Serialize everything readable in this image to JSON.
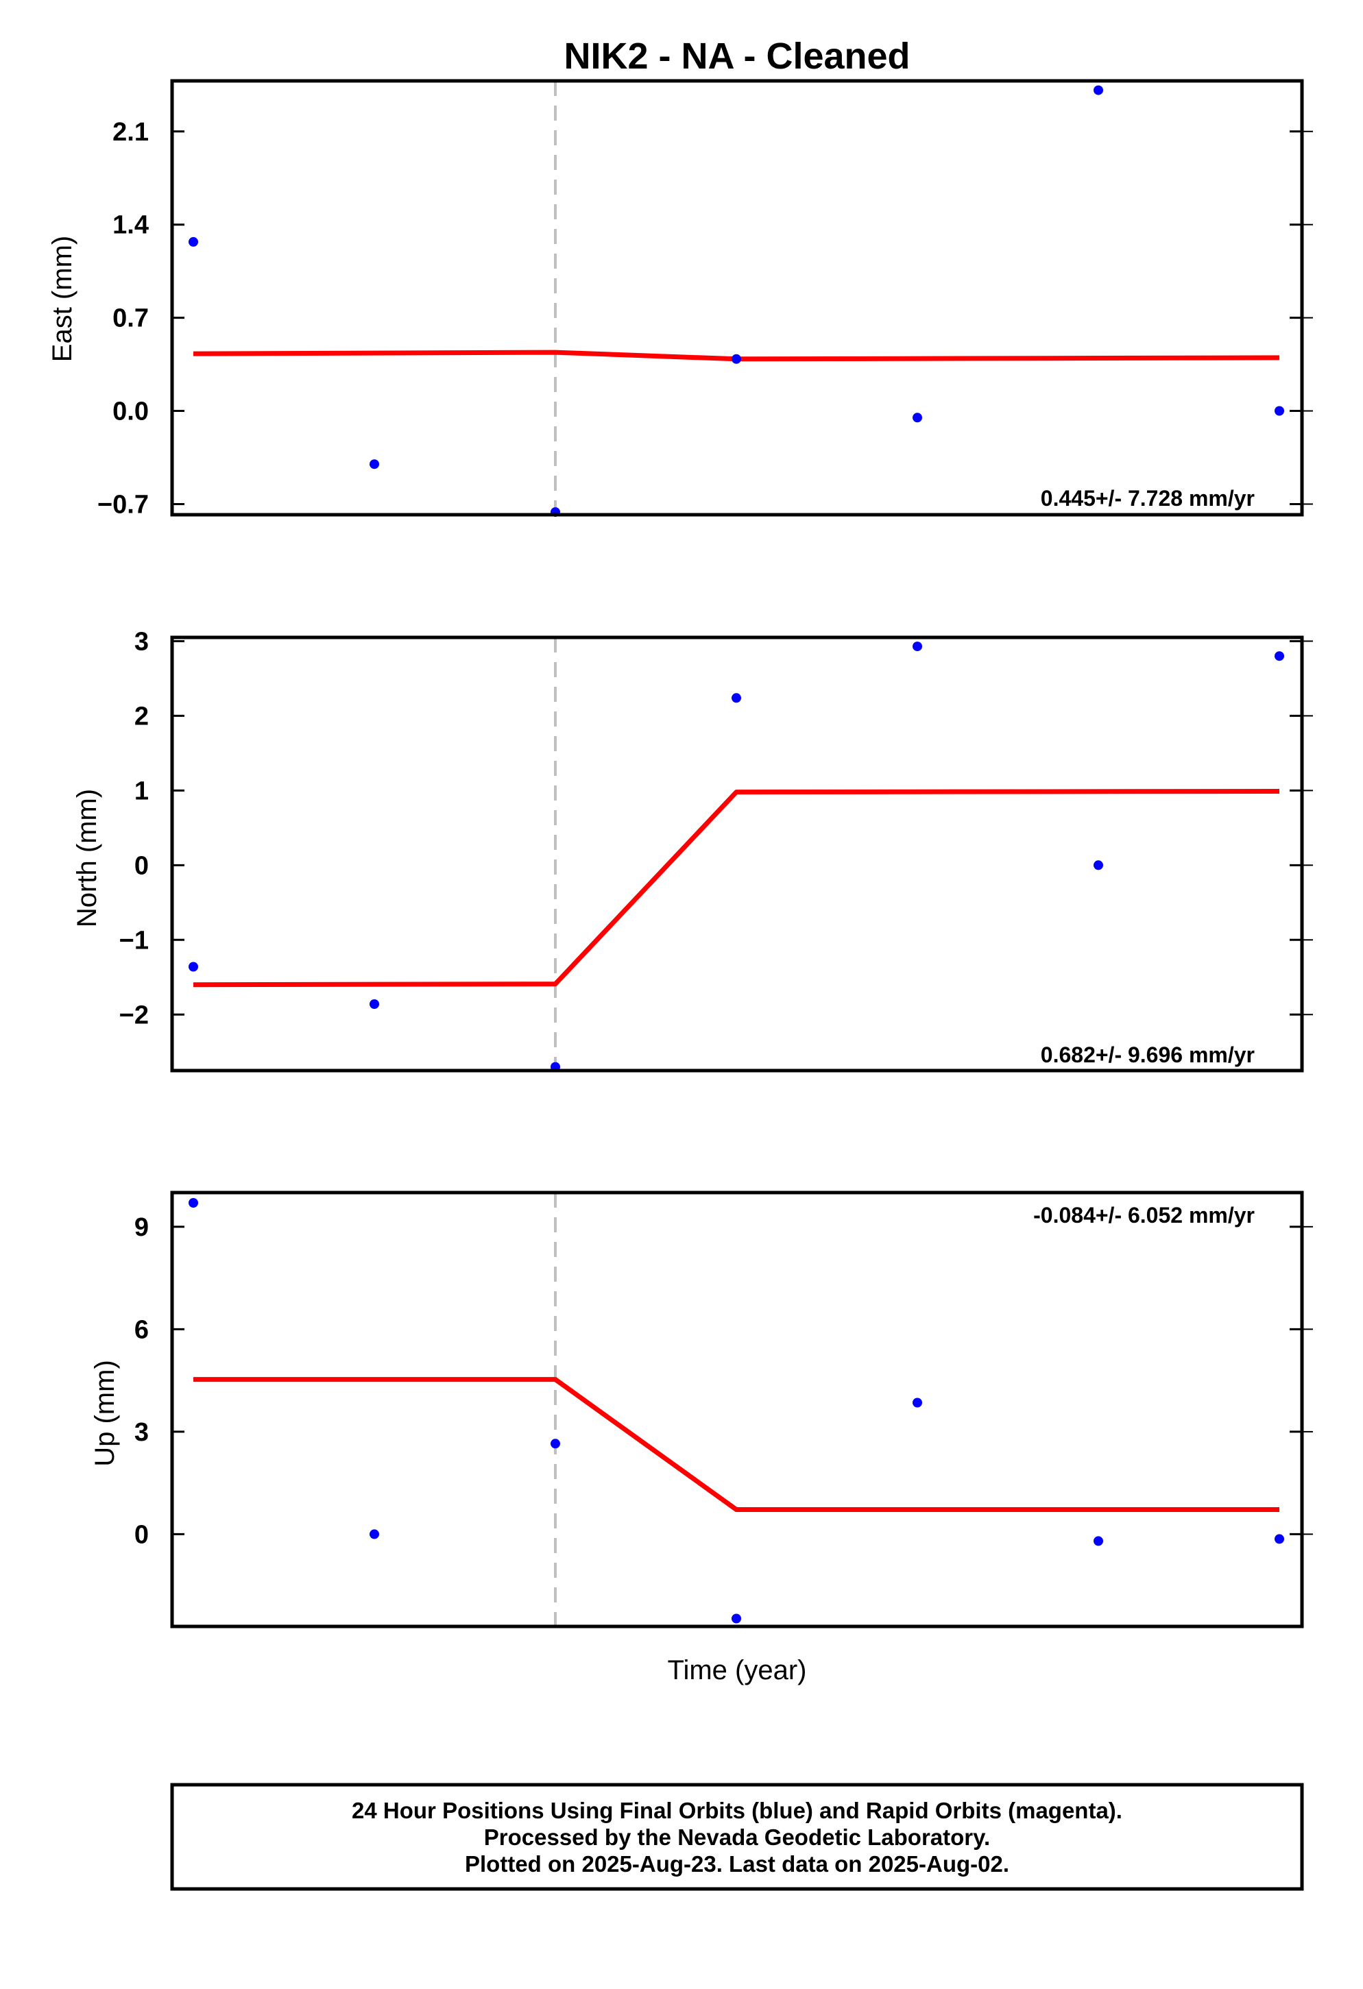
{
  "chart_data": {
    "type": "scatter",
    "title": "NIK2  - NA - Cleaned",
    "xlabel": "Time (year)",
    "x": [
      0,
      1,
      2,
      3,
      4,
      5,
      6
    ],
    "break_x": 2,
    "colors": {
      "points": "#0000ff",
      "fit": "#ff0000",
      "break_line": "#c0c0c0"
    },
    "panels": [
      {
        "ylabel": "East (mm)",
        "rate": "0.445+/- 7.728 mm/yr",
        "ylim": [
          -0.78,
          2.48
        ],
        "yticks": [
          -0.7,
          0.0,
          0.7,
          1.4,
          2.1
        ],
        "ytick_labels": [
          "−0.7",
          "0.0",
          "0.7",
          "1.4",
          "2.1"
        ],
        "points": [
          [
            0,
            1.27
          ],
          [
            1,
            -0.4
          ],
          [
            2,
            -0.76
          ],
          [
            3,
            0.39
          ],
          [
            4,
            -0.05
          ],
          [
            5,
            2.41
          ],
          [
            6,
            0.0
          ]
        ],
        "fit": [
          [
            0,
            0.43
          ],
          [
            2,
            0.44
          ],
          [
            3,
            0.39
          ],
          [
            6,
            0.4
          ]
        ]
      },
      {
        "ylabel": "North (mm)",
        "rate": "0.682+/- 9.696 mm/yr",
        "ylim": [
          -2.75,
          3.05
        ],
        "yticks": [
          -2,
          -1,
          0,
          1,
          2,
          3
        ],
        "ytick_labels": [
          "−2",
          "−1",
          "0",
          "1",
          "2",
          "3"
        ],
        "points": [
          [
            0,
            -1.36
          ],
          [
            1,
            -1.86
          ],
          [
            2,
            -2.7
          ],
          [
            3,
            2.24
          ],
          [
            4,
            2.93
          ],
          [
            5,
            0.0
          ],
          [
            6,
            2.8
          ]
        ],
        "fit": [
          [
            0,
            -1.6
          ],
          [
            2,
            -1.59
          ],
          [
            3,
            0.98
          ],
          [
            6,
            0.99
          ]
        ]
      },
      {
        "ylabel": "Up (mm)",
        "rate": "-0.084+/- 6.052 mm/yr",
        "ylim": [
          -2.7,
          10.0
        ],
        "yticks": [
          0,
          3,
          6,
          9
        ],
        "ytick_labels": [
          "0",
          "3",
          "6",
          "9"
        ],
        "points": [
          [
            0,
            9.7
          ],
          [
            1,
            0.0
          ],
          [
            2,
            2.65
          ],
          [
            3,
            -2.47
          ],
          [
            4,
            3.85
          ],
          [
            5,
            -0.2
          ],
          [
            6,
            -0.14
          ]
        ],
        "fit": [
          [
            0,
            4.53
          ],
          [
            2,
            4.53
          ],
          [
            3,
            0.72
          ],
          [
            6,
            0.72
          ]
        ]
      }
    ]
  },
  "footer": {
    "line1": "24 Hour Positions Using Final Orbits (blue) and Rapid Orbits (magenta).",
    "line2": "Processed by the Nevada Geodetic Laboratory.",
    "line3": "Plotted on 2025-Aug-23. Last data on 2025-Aug-02."
  }
}
